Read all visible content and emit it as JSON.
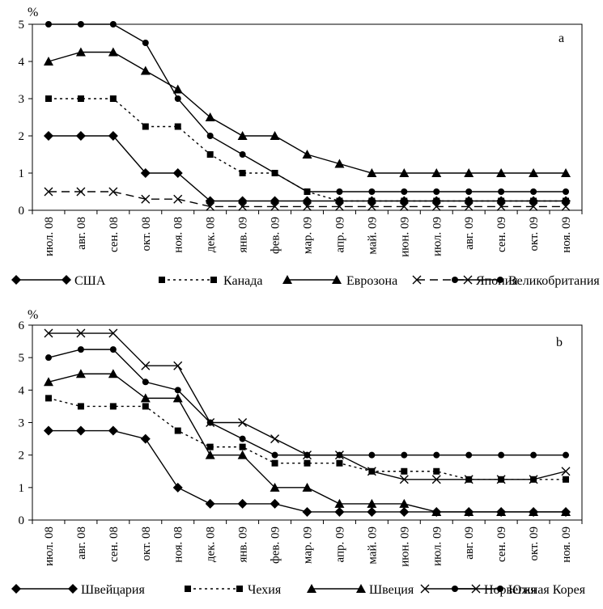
{
  "chart_data": [
    {
      "type": "line",
      "panel_label": "a",
      "unit_label": "%",
      "ylim": [
        0,
        5
      ],
      "yticks": [
        "0",
        "1",
        "2",
        "3",
        "4",
        "5"
      ],
      "grid": false,
      "legend_position": "bottom",
      "categories": [
        "июл. 08",
        "авг. 08",
        "сен. 08",
        "окт. 08",
        "ноя. 08",
        "дек. 08",
        "янв. 09",
        "фев. 09",
        "мар. 09",
        "апр. 09",
        "май. 09",
        "июн. 09",
        "июл. 09",
        "авг. 09",
        "сен. 09",
        "окт. 09",
        "ноя. 09"
      ],
      "series": [
        {
          "name": "США",
          "marker": "diamond",
          "dash": "solid",
          "color": "#000000",
          "values": [
            2,
            2,
            2,
            1,
            1,
            0.25,
            0.25,
            0.25,
            0.25,
            0.25,
            0.25,
            0.25,
            0.25,
            0.25,
            0.25,
            0.25,
            0.25
          ]
        },
        {
          "name": "Канада",
          "marker": "square",
          "dash": "dotted",
          "color": "#000000",
          "values": [
            3,
            3,
            3,
            2.25,
            2.25,
            1.5,
            1,
            1,
            0.5,
            0.25,
            0.25,
            0.25,
            0.25,
            0.25,
            0.25,
            0.25,
            0.25
          ]
        },
        {
          "name": "Еврозона",
          "marker": "triangle",
          "dash": "solid",
          "color": "#000000",
          "values": [
            4,
            4.25,
            4.25,
            3.75,
            3.25,
            2.5,
            2,
            2,
            1.5,
            1.25,
            1,
            1,
            1,
            1,
            1,
            1,
            1
          ]
        },
        {
          "name": "Япония",
          "marker": "cross",
          "dash": "dashed",
          "color": "#000000",
          "values": [
            0.5,
            0.5,
            0.5,
            0.3,
            0.3,
            0.1,
            0.1,
            0.1,
            0.1,
            0.1,
            0.1,
            0.1,
            0.1,
            0.1,
            0.1,
            0.1,
            0.1
          ]
        },
        {
          "name": "Великобритания",
          "marker": "circle",
          "dash": "solid",
          "color": "#000000",
          "values": [
            5,
            5,
            5,
            4.5,
            3,
            2,
            1.5,
            1,
            0.5,
            0.5,
            0.5,
            0.5,
            0.5,
            0.5,
            0.5,
            0.5,
            0.5
          ]
        }
      ]
    },
    {
      "type": "line",
      "panel_label": "b",
      "unit_label": "%",
      "ylim": [
        0,
        6
      ],
      "yticks": [
        "0",
        "1",
        "2",
        "3",
        "4",
        "5",
        "6"
      ],
      "grid": false,
      "legend_position": "bottom",
      "categories": [
        "июл. 08",
        "авг. 08",
        "сен. 08",
        "окт. 08",
        "ноя. 08",
        "дек. 08",
        "янв. 09",
        "фев. 09",
        "мар. 09",
        "апр. 09",
        "май. 09",
        "июн. 09",
        "июл. 09",
        "авг. 09",
        "сен. 09",
        "окт. 09",
        "ноя. 09"
      ],
      "series": [
        {
          "name": "Швейцария",
          "marker": "diamond",
          "dash": "solid",
          "color": "#000000",
          "values": [
            2.75,
            2.75,
            2.75,
            2.5,
            1,
            0.5,
            0.5,
            0.5,
            0.25,
            0.25,
            0.25,
            0.25,
            0.25,
            0.25,
            0.25,
            0.25,
            0.25
          ]
        },
        {
          "name": "Чехия",
          "marker": "square",
          "dash": "dotted",
          "color": "#000000",
          "values": [
            3.75,
            3.5,
            3.5,
            3.5,
            2.75,
            2.25,
            2.25,
            1.75,
            1.75,
            1.75,
            1.5,
            1.5,
            1.5,
            1.25,
            1.25,
            1.25,
            1.25
          ]
        },
        {
          "name": "Швеция",
          "marker": "triangle",
          "dash": "solid",
          "color": "#000000",
          "values": [
            4.25,
            4.5,
            4.5,
            3.75,
            3.75,
            2,
            2,
            1,
            1,
            0.5,
            0.5,
            0.5,
            0.25,
            0.25,
            0.25,
            0.25,
            0.25
          ]
        },
        {
          "name": "Норвегия",
          "marker": "cross",
          "dash": "solid",
          "color": "#000000",
          "values": [
            5.75,
            5.75,
            5.75,
            4.75,
            4.75,
            3,
            3,
            2.5,
            2,
            2,
            1.5,
            1.25,
            1.25,
            1.25,
            1.25,
            1.25,
            1.5
          ]
        },
        {
          "name": "Южная Корея",
          "marker": "circle",
          "dash": "solid",
          "color": "#000000",
          "values": [
            5,
            5.25,
            5.25,
            4.25,
            4,
            3,
            2.5,
            2,
            2,
            2,
            2,
            2,
            2,
            2,
            2,
            2,
            2
          ]
        }
      ]
    }
  ]
}
